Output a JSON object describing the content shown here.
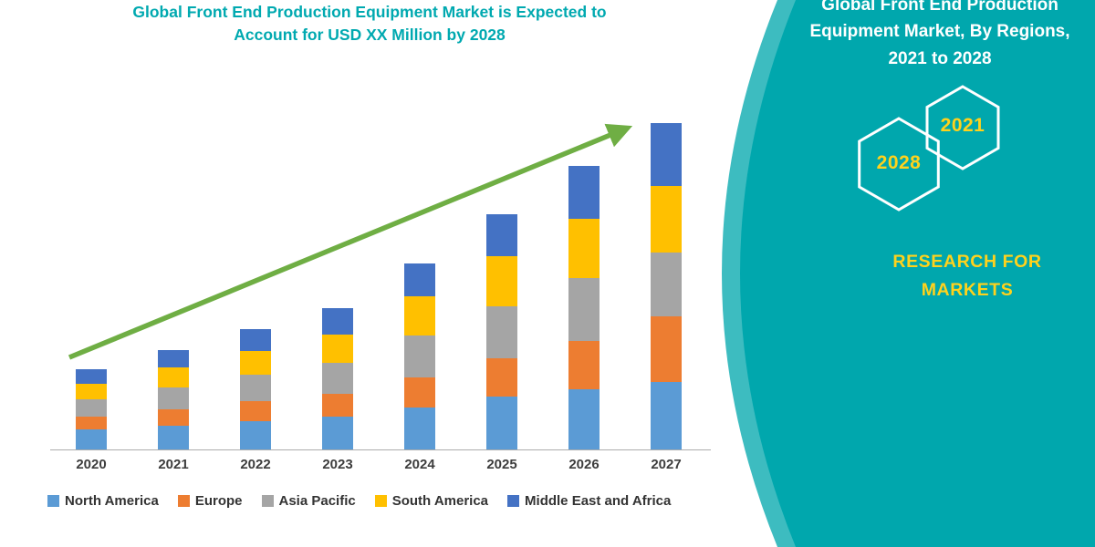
{
  "left_header": {
    "title_line1": "Global Front End Production Equipment Market is Expected to",
    "title_line2": "Account for USD XX Million by 2028",
    "title_color": "#00a9b0"
  },
  "right_panel": {
    "title_lines": [
      "Global Front End Production",
      "Equipment Market, By Regions,",
      "2021 to 2028"
    ],
    "hexagon_years": [
      "2028",
      "2021"
    ],
    "brand_line1": "RESEARCH FOR",
    "brand_line2": "MARKETS",
    "colors": {
      "teal": "#00a7ad",
      "teal_light": "#3dbcc0",
      "yellow": "#ffd21c",
      "hex_outline": "#ffffff"
    }
  },
  "chart_data": {
    "type": "bar",
    "stacked": true,
    "title": "Global Front End Production Equipment Market is Expected to Account for USD XX Million by 2028",
    "categories": [
      "2020",
      "2021",
      "2022",
      "2023",
      "2024",
      "2025",
      "2026",
      "2027"
    ],
    "series": [
      {
        "name": "North America",
        "color": "#5b9bd5",
        "values": [
          18,
          22,
          26,
          30,
          38,
          48,
          55,
          62
        ]
      },
      {
        "name": "Europe",
        "color": "#ed7d31",
        "values": [
          12,
          15,
          18,
          21,
          28,
          35,
          44,
          60
        ]
      },
      {
        "name": "Asia Pacific",
        "color": "#a5a5a5",
        "values": [
          16,
          20,
          24,
          28,
          38,
          48,
          58,
          58
        ]
      },
      {
        "name": "South America",
        "color": "#ffc000",
        "values": [
          14,
          18,
          22,
          26,
          36,
          46,
          54,
          61
        ]
      },
      {
        "name": "Middle East and Africa",
        "color": "#4472c4",
        "values": [
          13,
          16,
          20,
          24,
          30,
          38,
          48,
          57
        ]
      }
    ],
    "xlabel": "",
    "ylabel": "",
    "y_axis_visible": false,
    "grid": false,
    "legend_position": "bottom",
    "trend_arrow": true,
    "trend_arrow_color": "#6fae44"
  }
}
